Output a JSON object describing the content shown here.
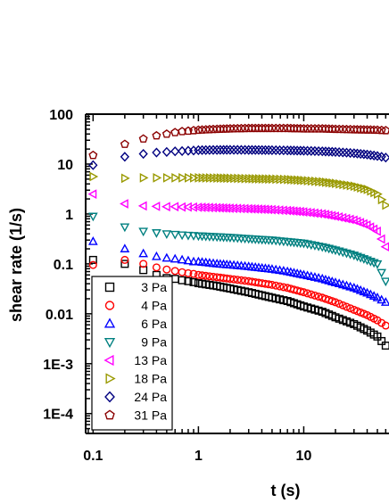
{
  "chart_data": {
    "type": "scatter",
    "title": "",
    "xlabel": "t (s)",
    "ylabel": "shear rate (1/s)",
    "x_scale": "log",
    "y_scale": "log",
    "xlim": [
      0.085,
      62
    ],
    "ylim": [
      4e-05,
      100
    ],
    "x_tick_labels": [
      "0.1",
      "1",
      "10"
    ],
    "y_tick_labels": [
      "100",
      "10",
      "1",
      "0.1",
      "0.01",
      "1E-3",
      "1E-4"
    ],
    "legend_position": "lower-left",
    "grid": false,
    "x": [
      0.1,
      0.2,
      0.3,
      0.4,
      0.5,
      0.6,
      0.7,
      0.8,
      0.9,
      1,
      1.5,
      2,
      3,
      5,
      7,
      10,
      15,
      20,
      30,
      40,
      50,
      60
    ],
    "series": [
      {
        "name": "3 Pa",
        "marker": "square",
        "color": "#000000",
        "values": [
          0.12,
          0.1,
          0.075,
          0.06,
          0.052,
          0.05,
          0.047,
          0.045,
          0.043,
          0.041,
          0.036,
          0.032,
          0.027,
          0.021,
          0.018,
          0.014,
          0.011,
          0.0085,
          0.0062,
          0.0046,
          0.0035,
          0.0023
        ]
      },
      {
        "name": "4 Pa",
        "marker": "circle",
        "color": "#ff0000",
        "values": [
          0.095,
          0.12,
          0.1,
          0.085,
          0.077,
          0.072,
          0.068,
          0.065,
          0.063,
          0.06,
          0.054,
          0.05,
          0.045,
          0.038,
          0.033,
          0.027,
          0.021,
          0.017,
          0.012,
          0.0094,
          0.0074,
          0.0058
        ]
      },
      {
        "name": "6 Pa",
        "marker": "triangle-up",
        "color": "#0000ff",
        "values": [
          0.28,
          0.2,
          0.16,
          0.14,
          0.13,
          0.125,
          0.12,
          0.115,
          0.11,
          0.11,
          0.1,
          0.095,
          0.088,
          0.078,
          0.07,
          0.06,
          0.05,
          0.042,
          0.033,
          0.026,
          0.021,
          0.017
        ]
      },
      {
        "name": "9 Pa",
        "marker": "triangle-down",
        "color": "#008080",
        "values": [
          0.9,
          0.55,
          0.45,
          0.42,
          0.4,
          0.39,
          0.38,
          0.375,
          0.37,
          0.365,
          0.35,
          0.34,
          0.32,
          0.3,
          0.28,
          0.26,
          0.22,
          0.19,
          0.15,
          0.12,
          0.1,
          0.045
        ]
      },
      {
        "name": "13 Pa",
        "marker": "triangle-left",
        "color": "#ff00ff",
        "values": [
          2.5,
          1.6,
          1.45,
          1.42,
          1.4,
          1.4,
          1.38,
          1.38,
          1.37,
          1.36,
          1.33,
          1.3,
          1.27,
          1.22,
          1.17,
          1.1,
          1.0,
          0.9,
          0.75,
          0.6,
          0.45,
          0.22
        ]
      },
      {
        "name": "18 Pa",
        "marker": "triangle-right",
        "color": "#999900",
        "values": [
          5.6,
          5.2,
          5.3,
          5.3,
          5.3,
          5.3,
          5.3,
          5.3,
          5.3,
          5.3,
          5.25,
          5.2,
          5.1,
          5.0,
          4.9,
          4.7,
          4.4,
          4.1,
          3.6,
          3.1,
          2.5,
          1.5
        ]
      },
      {
        "name": "24 Pa",
        "marker": "diamond",
        "color": "#000080",
        "values": [
          9.5,
          14,
          16,
          17,
          17.5,
          18,
          18.2,
          18.5,
          18.7,
          19,
          19.2,
          19.3,
          19.2,
          19,
          18.8,
          18.5,
          18,
          17.5,
          16.5,
          15.5,
          14.5,
          13.5
        ]
      },
      {
        "name": "31 Pa",
        "marker": "pentagon",
        "color": "#8b0000",
        "values": [
          15,
          25,
          32,
          37,
          40,
          43,
          45,
          46,
          47,
          48,
          50,
          51,
          52,
          52,
          52,
          51,
          51,
          50,
          49,
          48.5,
          48,
          47
        ]
      }
    ]
  }
}
